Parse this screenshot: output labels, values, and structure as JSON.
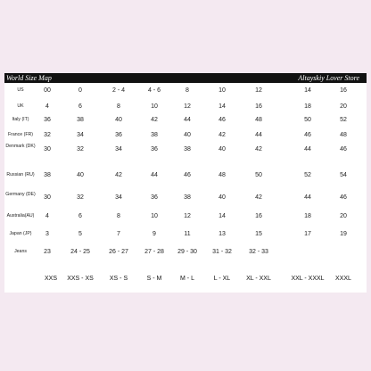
{
  "header": {
    "title": "World Size Map",
    "store": "Altayskiy Lover Store"
  },
  "rows": [
    {
      "label": "US",
      "values": [
        "00",
        "0",
        "2 - 4",
        "4 - 6",
        "8",
        "10",
        "12",
        "14",
        "16"
      ]
    },
    {
      "label": "UK",
      "values": [
        "4",
        "6",
        "8",
        "10",
        "12",
        "14",
        "16",
        "18",
        "20"
      ]
    },
    {
      "label": "Italy (IT)",
      "values": [
        "36",
        "38",
        "40",
        "42",
        "44",
        "46",
        "48",
        "50",
        "52"
      ]
    },
    {
      "label": "France (FR)",
      "values": [
        "32",
        "34",
        "36",
        "38",
        "40",
        "42",
        "44",
        "46",
        "48"
      ]
    },
    {
      "label": "Denmark (DK)",
      "values": [
        "30",
        "32",
        "34",
        "36",
        "38",
        "40",
        "42",
        "44",
        "46"
      ]
    },
    {
      "label": "Russian (RU)",
      "values": [
        "38",
        "40",
        "42",
        "44",
        "46",
        "48",
        "50",
        "52",
        "54"
      ]
    },
    {
      "label": "Germany (DE)",
      "values": [
        "30",
        "32",
        "34",
        "36",
        "38",
        "40",
        "42",
        "44",
        "46"
      ]
    },
    {
      "label": "Australia(AU)",
      "values": [
        "4",
        "6",
        "8",
        "10",
        "12",
        "14",
        "16",
        "18",
        "20"
      ]
    },
    {
      "label": "Japan (JP)",
      "values": [
        "3",
        "5",
        "7",
        "9",
        "11",
        "13",
        "15",
        "17",
        "19"
      ]
    },
    {
      "label": "Jeans",
      "values": [
        "23",
        "24 - 25",
        "26 - 27",
        "27 - 28",
        "29 - 30",
        "31 - 32",
        "32 - 33",
        "",
        ""
      ]
    }
  ],
  "sizes": [
    "XXS",
    "XXS - XS",
    "XS - S",
    "S - M",
    "M - L",
    "L - XL",
    "XL - XXL",
    "XXL - XXXL",
    "XXXL"
  ]
}
